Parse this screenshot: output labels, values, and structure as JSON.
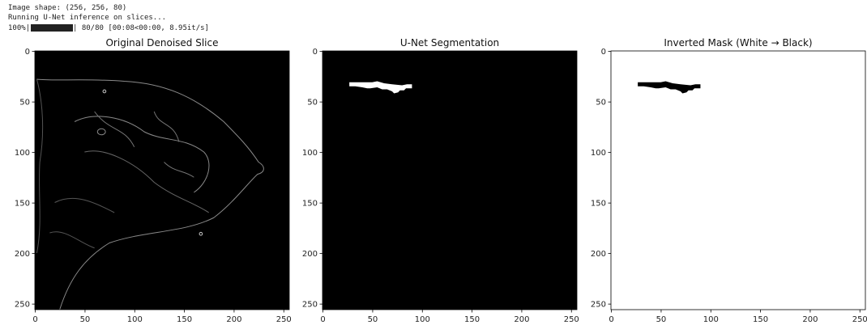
{
  "console": {
    "lines": [
      "Image shape: (256, 256, 80)",
      "Running U-Net inference on slices..."
    ],
    "progress": {
      "left": "100%|",
      "right": "| 80/80 [00:08<00:00,  8.95it/s]"
    }
  },
  "chart_data": [
    {
      "type": "image",
      "title": "Original Denoised Slice",
      "xlim": [
        -0.5,
        255.5
      ],
      "ylim": [
        255.5,
        -0.5
      ],
      "xticks": [
        0,
        50,
        100,
        150,
        200,
        250
      ],
      "yticks": [
        0,
        50,
        100,
        150,
        200,
        250
      ]
    },
    {
      "type": "image",
      "title": "U-Net Segmentation",
      "xlim": [
        -0.5,
        255.5
      ],
      "ylim": [
        255.5,
        -0.5
      ],
      "xticks": [
        0,
        50,
        100,
        150,
        200,
        250
      ],
      "yticks": [
        0,
        50,
        100,
        150,
        200,
        250
      ]
    },
    {
      "type": "image",
      "title": "Inverted Mask (White → Black)",
      "xlim": [
        -0.5,
        255.5
      ],
      "ylim": [
        255.5,
        -0.5
      ],
      "xticks": [
        0,
        50,
        100,
        150,
        200,
        250
      ],
      "yticks": [
        0,
        50,
        100,
        150,
        200,
        250
      ]
    }
  ]
}
